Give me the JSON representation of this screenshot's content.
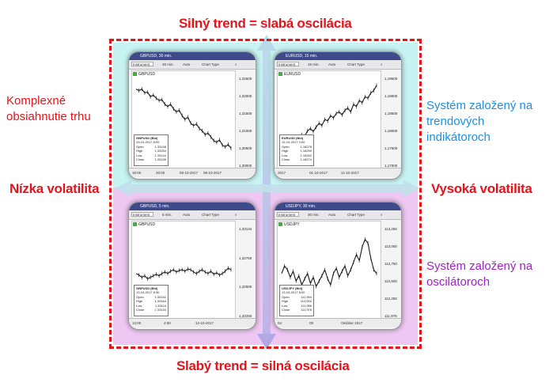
{
  "headings": {
    "top": "Silný trend = slabá oscilácia",
    "bottom": "Slabý trend = silná oscilácia",
    "left": "Nízka volatilita",
    "right": "Vysoká volatilita"
  },
  "annotations": {
    "top_left_line1": "Komplexné",
    "top_left_line2": "obsiahnutie trhu",
    "top_right_line1": "Systém založený na",
    "top_right_line2": "trendových",
    "top_right_line3": "indikátoroch",
    "bottom_right_line1": "Systém založený na",
    "bottom_right_line2": "oscilátoroch"
  },
  "colors": {
    "heading": "#e8121a",
    "left_annotation": "#e8121a",
    "trend_annotation": "#1f8fe0",
    "osc_annotation": "#a020c8",
    "quad_cyan": "#c8f3f3",
    "quad_violet": "#eec8f2",
    "frame": "#e8121a"
  },
  "panels": [
    {
      "id": "tl",
      "title": "GBPUSD, 30 min.",
      "instrument_placeholder": "Instrument",
      "interval": "30 min.",
      "auto": "Auto",
      "chart_type": "Chart Type",
      "symbol": "GBPUSD",
      "y_ticks": [
        "1,32500",
        "1,32000",
        "1,31500",
        "1,31000",
        "1,30500",
        "1,30000"
      ],
      "info": {
        "title": "GBPUSD (Bid)",
        "date": "13-10-2017 8:00",
        "Open": "1,33148",
        "High": "1,33254",
        "Low": "1,33144",
        "Close": "1,33196"
      },
      "time_labels": [
        "16:00",
        "20:00",
        "05-10-2017",
        "06-10-2017"
      ],
      "series": [
        0.1,
        0.12,
        0.1,
        0.15,
        0.14,
        0.2,
        0.18,
        0.22,
        0.25,
        0.24,
        0.3,
        0.33,
        0.3,
        0.36,
        0.4,
        0.38,
        0.45,
        0.5,
        0.47,
        0.55,
        0.58,
        0.56,
        0.62,
        0.65,
        0.7,
        0.68,
        0.73,
        0.78,
        0.8,
        0.77,
        0.84,
        0.86,
        0.83,
        0.88
      ]
    },
    {
      "id": "tr",
      "title": "EURUSD, 15 min.",
      "instrument_placeholder": "Instrument",
      "interval": "15 min.",
      "auto": "Auto",
      "chart_type": "Chart Type",
      "symbol": "EURUSD",
      "y_ticks": [
        "1,19500",
        "1,19000",
        "1,18500",
        "1,18000",
        "1,17500",
        "1,17000"
      ],
      "info": {
        "title": "EURUSD (Bid)",
        "date": "12-10-2017 0:00",
        "Open": "1,18278",
        "High": "1,18290",
        "Low": "1,18262",
        "Close": "1,18274"
      },
      "time_labels": [
        "2017",
        "01-10-2017",
        "11-10-2017"
      ],
      "series": [
        0.95,
        0.9,
        0.92,
        0.85,
        0.8,
        0.82,
        0.75,
        0.7,
        0.72,
        0.65,
        0.62,
        0.66,
        0.6,
        0.55,
        0.58,
        0.5,
        0.52,
        0.45,
        0.48,
        0.42,
        0.4,
        0.44,
        0.38,
        0.35,
        0.4,
        0.3,
        0.33,
        0.25,
        0.28,
        0.2,
        0.22,
        0.15,
        0.12,
        0.05
      ]
    },
    {
      "id": "bl",
      "title": "GBPUSD, 5 min.",
      "instrument_placeholder": "Instrument",
      "interval": "5 min.",
      "auto": "Auto",
      "chart_type": "Chart Type",
      "symbol": "GBPUSD",
      "y_ticks": [
        "1,33134",
        "1,32750",
        "1,32500",
        "1,32250"
      ],
      "info": {
        "title": "GBPUSD (Bid)",
        "date": "13-10-2017 8:30",
        "Open": "1,33152",
        "High": "1,33164",
        "Low": "1,33114",
        "Close": "1,33134"
      },
      "time_labels": [
        "12:00",
        "4:00",
        "12-10-2017"
      ],
      "series": [
        0.55,
        0.57,
        0.6,
        0.58,
        0.62,
        0.6,
        0.58,
        0.56,
        0.58,
        0.55,
        0.53,
        0.55,
        0.52,
        0.5,
        0.53,
        0.51,
        0.5,
        0.52,
        0.49,
        0.5,
        0.53,
        0.55,
        0.52,
        0.5,
        0.53,
        0.55,
        0.52,
        0.56,
        0.54,
        0.57,
        0.55,
        0.52,
        0.48,
        0.5
      ]
    },
    {
      "id": "br",
      "title": "USDJPY, 30 min.",
      "instrument_placeholder": "Instrument",
      "interval": "30 min.",
      "auto": "Auto",
      "chart_type": "Chart Type",
      "symbol": "USDJPY",
      "y_ticks": [
        "113,250",
        "113,000",
        "112,750",
        "112,500",
        "112,250",
        "111,976"
      ],
      "info": {
        "title": "USDJPY (Bid)",
        "date": "13-10-2017 8:00",
        "Open": "111,994",
        "High": "112,002",
        "Low": "111,956",
        "Close": "111,976"
      },
      "time_labels": [
        "04",
        "09",
        "Október 2017"
      ],
      "series": [
        0.55,
        0.45,
        0.5,
        0.6,
        0.52,
        0.65,
        0.58,
        0.7,
        0.62,
        0.55,
        0.68,
        0.6,
        0.72,
        0.65,
        0.58,
        0.5,
        0.62,
        0.7,
        0.55,
        0.48,
        0.6,
        0.52,
        0.45,
        0.58,
        0.5,
        0.4,
        0.3,
        0.38,
        0.2,
        0.1,
        0.15,
        0.35,
        0.5,
        0.55
      ]
    }
  ]
}
